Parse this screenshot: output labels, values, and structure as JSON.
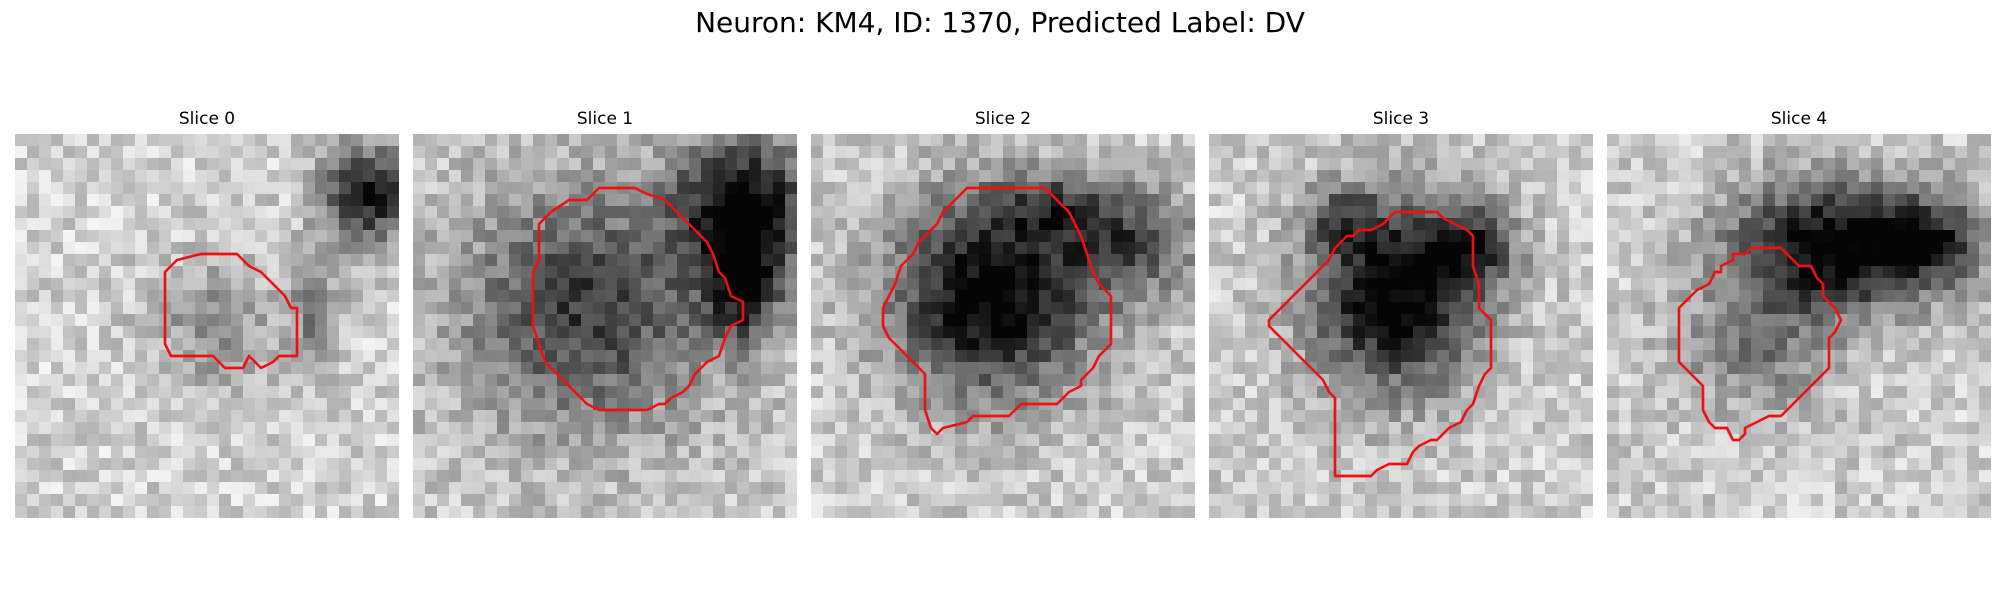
{
  "figure": {
    "title": "Neuron: KM4, ID: 1370, Predicted Label: DV"
  },
  "contour_color": "#ee1111",
  "grid_size": 32,
  "panels": [
    {
      "title": "Slice 0",
      "blobs": [
        {
          "cx": 16.5,
          "cy": 16.0,
          "rx": 6.0,
          "ry": 6.0,
          "strength": 0.25
        },
        {
          "cx": 29.5,
          "cy": 5.0,
          "rx": 4.0,
          "ry": 4.5,
          "strength": 0.75
        },
        {
          "cx": 25.0,
          "cy": 15.0,
          "rx": 2.5,
          "ry": 6.0,
          "strength": 0.3
        }
      ],
      "base": 0.82,
      "seed": 11,
      "contour": [
        [
          12.5,
          11.5
        ],
        [
          13.5,
          10.5
        ],
        [
          15.5,
          10
        ],
        [
          18.5,
          10
        ],
        [
          19.5,
          11
        ],
        [
          20.5,
          11.5
        ],
        [
          22,
          13
        ],
        [
          22.5,
          13.5
        ],
        [
          23,
          14.5
        ],
        [
          23.5,
          14.5
        ],
        [
          23.5,
          17.5
        ],
        [
          23.5,
          18.5
        ],
        [
          22,
          18.5
        ],
        [
          21.5,
          19
        ],
        [
          20.5,
          19.5
        ],
        [
          19.5,
          18.5
        ],
        [
          19,
          19.5
        ],
        [
          18.5,
          19.5
        ],
        [
          17.5,
          19.5
        ],
        [
          16.5,
          18.5
        ],
        [
          14.5,
          18.5
        ],
        [
          13,
          18.5
        ],
        [
          12.5,
          17.5
        ],
        [
          12.5,
          15.5
        ],
        [
          12.5,
          13
        ]
      ]
    },
    {
      "title": "Slice 1",
      "blobs": [
        {
          "cx": 14.5,
          "cy": 14.5,
          "rx": 11.0,
          "ry": 10.5,
          "strength": 0.55
        },
        {
          "cx": 27.5,
          "cy": 6.0,
          "rx": 6.0,
          "ry": 6.0,
          "strength": 0.8
        },
        {
          "cx": 27.5,
          "cy": 13.0,
          "rx": 3.5,
          "ry": 5.0,
          "strength": 0.6
        }
      ],
      "base": 0.78,
      "seed": 23,
      "contour": [
        [
          10.5,
          7.5
        ],
        [
          11.5,
          6.5
        ],
        [
          13,
          5.5
        ],
        [
          14.5,
          5.5
        ],
        [
          15.5,
          4.5
        ],
        [
          18.5,
          4.5
        ],
        [
          19.5,
          5
        ],
        [
          21,
          5.5
        ],
        [
          22.5,
          7
        ],
        [
          23.5,
          8
        ],
        [
          24.5,
          9
        ],
        [
          25,
          10
        ],
        [
          25.5,
          11.5
        ],
        [
          26,
          12
        ],
        [
          26.5,
          13.5
        ],
        [
          27.5,
          14
        ],
        [
          27.5,
          15.5
        ],
        [
          26.5,
          16
        ],
        [
          26,
          17
        ],
        [
          25.5,
          18.5
        ],
        [
          24.5,
          19
        ],
        [
          23.5,
          20
        ],
        [
          23,
          21
        ],
        [
          22.5,
          21.5
        ],
        [
          21.5,
          22
        ],
        [
          21,
          22.5
        ],
        [
          20.5,
          22.5
        ],
        [
          19.5,
          23
        ],
        [
          15.5,
          23
        ],
        [
          14.5,
          22.5
        ],
        [
          13,
          21
        ],
        [
          12.5,
          20.5
        ],
        [
          11,
          19
        ],
        [
          10.5,
          17.5
        ],
        [
          10,
          16
        ],
        [
          10,
          14
        ],
        [
          10,
          11.5
        ],
        [
          10.5,
          10.5
        ],
        [
          10.5,
          9
        ]
      ]
    },
    {
      "title": "Slice 2",
      "blobs": [
        {
          "cx": 15.0,
          "cy": 13.5,
          "rx": 9.0,
          "ry": 9.0,
          "strength": 0.85
        },
        {
          "cx": 26.5,
          "cy": 9.0,
          "rx": 6.0,
          "ry": 5.0,
          "strength": 0.5
        },
        {
          "cx": 20.0,
          "cy": 6.0,
          "rx": 5.0,
          "ry": 3.0,
          "strength": 0.35
        }
      ],
      "base": 0.8,
      "seed": 37,
      "contour": [
        [
          6.5,
          13.5
        ],
        [
          7,
          12.5
        ],
        [
          7.5,
          11
        ],
        [
          8.5,
          10
        ],
        [
          9,
          9
        ],
        [
          10.5,
          7.5
        ],
        [
          11,
          6.5
        ],
        [
          12,
          5.5
        ],
        [
          13,
          4.5
        ],
        [
          19.5,
          4.5
        ],
        [
          20.5,
          5.5
        ],
        [
          21.5,
          6.5
        ],
        [
          22,
          7.5
        ],
        [
          22.5,
          8.5
        ],
        [
          23,
          10
        ],
        [
          23.5,
          11.5
        ],
        [
          24,
          12.5
        ],
        [
          25,
          13.5
        ],
        [
          25,
          17.5
        ],
        [
          24,
          18.5
        ],
        [
          23.5,
          19.5
        ],
        [
          22.5,
          20.5
        ],
        [
          22.5,
          21
        ],
        [
          21.5,
          21.5
        ],
        [
          21,
          22
        ],
        [
          20.5,
          22.5
        ],
        [
          19.5,
          22.5
        ],
        [
          17.5,
          22.5
        ],
        [
          17,
          23
        ],
        [
          16.5,
          23.5
        ],
        [
          13.5,
          23.5
        ],
        [
          13,
          24
        ],
        [
          11,
          24.5
        ],
        [
          10.5,
          25
        ],
        [
          10,
          24.5
        ],
        [
          9.5,
          23
        ],
        [
          9.5,
          20
        ],
        [
          8.5,
          19
        ],
        [
          7.5,
          18
        ],
        [
          6.5,
          17
        ],
        [
          6,
          16
        ],
        [
          6,
          14.5
        ]
      ]
    },
    {
      "title": "Slice 3",
      "blobs": [
        {
          "cx": 15.5,
          "cy": 13.5,
          "rx": 7.5,
          "ry": 8.5,
          "strength": 0.85
        },
        {
          "cx": 22.0,
          "cy": 9.5,
          "rx": 4.0,
          "ry": 4.0,
          "strength": 0.5
        },
        {
          "cx": 11.0,
          "cy": 7.0,
          "rx": 3.5,
          "ry": 3.0,
          "strength": 0.35
        }
      ],
      "base": 0.8,
      "seed": 53,
      "contour": [
        [
          5,
          15.5
        ],
        [
          6,
          14.5
        ],
        [
          7,
          13.5
        ],
        [
          8,
          12.5
        ],
        [
          9,
          11.5
        ],
        [
          10,
          10.5
        ],
        [
          10.5,
          9.5
        ],
        [
          11,
          9
        ],
        [
          11.5,
          8.5
        ],
        [
          12,
          8.5
        ],
        [
          12.5,
          8
        ],
        [
          13.5,
          8
        ],
        [
          14.5,
          7.5
        ],
        [
          15.5,
          6.5
        ],
        [
          19,
          6.5
        ],
        [
          19.5,
          7
        ],
        [
          20.5,
          7.5
        ],
        [
          21.5,
          8
        ],
        [
          22,
          8.5
        ],
        [
          22,
          11
        ],
        [
          22.5,
          12.5
        ],
        [
          22.5,
          14.5
        ],
        [
          23.5,
          15.5
        ],
        [
          23.5,
          19.5
        ],
        [
          23,
          20
        ],
        [
          22.5,
          21
        ],
        [
          22,
          22.5
        ],
        [
          21.5,
          23
        ],
        [
          21,
          24
        ],
        [
          20,
          24.5
        ],
        [
          19.5,
          25
        ],
        [
          19,
          25.5
        ],
        [
          18.5,
          25.5
        ],
        [
          17.5,
          26
        ],
        [
          17,
          26.5
        ],
        [
          16.5,
          27.5
        ],
        [
          15,
          27.5
        ],
        [
          14,
          28
        ],
        [
          13.5,
          28.5
        ],
        [
          10.5,
          28.5
        ],
        [
          10.5,
          26
        ],
        [
          10.5,
          22
        ],
        [
          10,
          21.5
        ],
        [
          9.5,
          20.5
        ],
        [
          9,
          20
        ],
        [
          8,
          19
        ],
        [
          7,
          18
        ],
        [
          6,
          17
        ],
        [
          5,
          16
        ]
      ]
    },
    {
      "title": "Slice 4",
      "blobs": [
        {
          "cx": 18.5,
          "cy": 9.5,
          "rx": 9.0,
          "ry": 6.0,
          "strength": 0.85
        },
        {
          "cx": 12.0,
          "cy": 18.0,
          "rx": 7.0,
          "ry": 5.5,
          "strength": 0.3
        },
        {
          "cx": 27.0,
          "cy": 9.0,
          "rx": 5.0,
          "ry": 4.0,
          "strength": 0.55
        }
      ],
      "base": 0.8,
      "seed": 71,
      "contour": [
        [
          6,
          14.5
        ],
        [
          7,
          13.5
        ],
        [
          7.5,
          13
        ],
        [
          8.5,
          12.5
        ],
        [
          9,
          11.5
        ],
        [
          9.5,
          11.5
        ],
        [
          9.5,
          11
        ],
        [
          10.5,
          10.5
        ],
        [
          10.5,
          10
        ],
        [
          11.5,
          10
        ],
        [
          12,
          9.5
        ],
        [
          13,
          9.5
        ],
        [
          14.5,
          9.5
        ],
        [
          15,
          10
        ],
        [
          15.5,
          10.5
        ],
        [
          16,
          11
        ],
        [
          17,
          11
        ],
        [
          17.5,
          12
        ],
        [
          18,
          12.5
        ],
        [
          18,
          13.5
        ],
        [
          18.5,
          14
        ],
        [
          19,
          14.5
        ],
        [
          19.5,
          15.5
        ],
        [
          19,
          16.5
        ],
        [
          18.5,
          17
        ],
        [
          18.5,
          19.5
        ],
        [
          17.5,
          20.5
        ],
        [
          16.5,
          21.5
        ],
        [
          15.5,
          22.5
        ],
        [
          14.5,
          23.5
        ],
        [
          13.5,
          23.5
        ],
        [
          12.5,
          24
        ],
        [
          11.5,
          24.5
        ],
        [
          11.5,
          25
        ],
        [
          11,
          25.5
        ],
        [
          10.5,
          25.5
        ],
        [
          10,
          24.5
        ],
        [
          9,
          24.5
        ],
        [
          8.5,
          24
        ],
        [
          8,
          23
        ],
        [
          8,
          21
        ],
        [
          7.5,
          20.5
        ],
        [
          7,
          20
        ],
        [
          6.5,
          19.5
        ],
        [
          6,
          19
        ],
        [
          6,
          17.5
        ],
        [
          6,
          15.5
        ]
      ]
    }
  ]
}
